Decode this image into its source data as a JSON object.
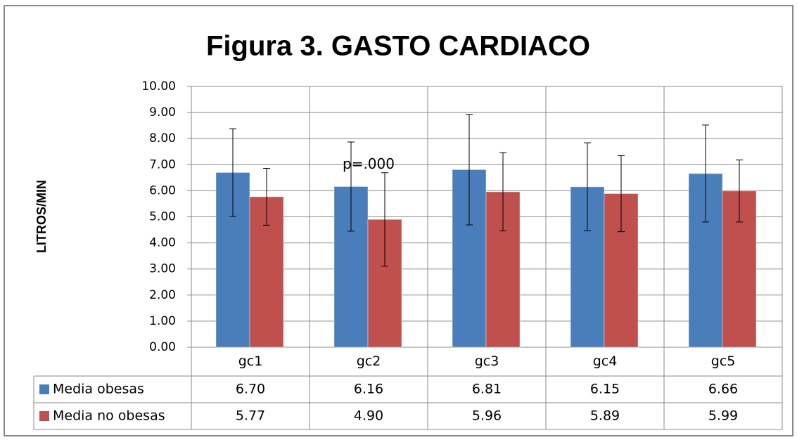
{
  "chart_data": {
    "type": "bar",
    "title": "Figura 3. GASTO CARDIACO",
    "y_label": "LITROS/MIN",
    "categories": [
      "gc1",
      "gc2",
      "gc3",
      "gc4",
      "gc5"
    ],
    "series": [
      {
        "name": "Media obesas",
        "color": "#4a7ebb",
        "values": [
          6.7,
          6.16,
          6.81,
          6.15,
          6.66
        ],
        "value_labels": [
          "6.70",
          "6.16",
          "6.81",
          "6.15",
          "6.66"
        ],
        "errors": [
          1.68,
          1.71,
          2.12,
          1.69,
          1.86
        ]
      },
      {
        "name": "Media no obesas",
        "color": "#c0504d",
        "values": [
          5.77,
          4.9,
          5.96,
          5.89,
          5.99
        ],
        "value_labels": [
          "5.77",
          "4.90",
          "5.96",
          "5.89",
          "5.99"
        ],
        "errors": [
          1.09,
          1.79,
          1.5,
          1.46,
          1.19
        ]
      }
    ],
    "ylim": [
      0,
      10
    ],
    "yticks": [
      {
        "value": 0,
        "label": "0.00"
      },
      {
        "value": 1,
        "label": "1.00"
      },
      {
        "value": 2,
        "label": "2.00"
      },
      {
        "value": 3,
        "label": "3.00"
      },
      {
        "value": 4,
        "label": "4.00"
      },
      {
        "value": 5,
        "label": "5.00"
      },
      {
        "value": 6,
        "label": "6.00"
      },
      {
        "value": 7,
        "label": "7.00"
      },
      {
        "value": 8,
        "label": "8.00"
      },
      {
        "value": 9,
        "label": "9.00"
      },
      {
        "value": 10,
        "label": "10.00"
      }
    ],
    "grid": true,
    "annotation": {
      "text": "p=.000",
      "category": 1,
      "y": 7.0
    }
  }
}
